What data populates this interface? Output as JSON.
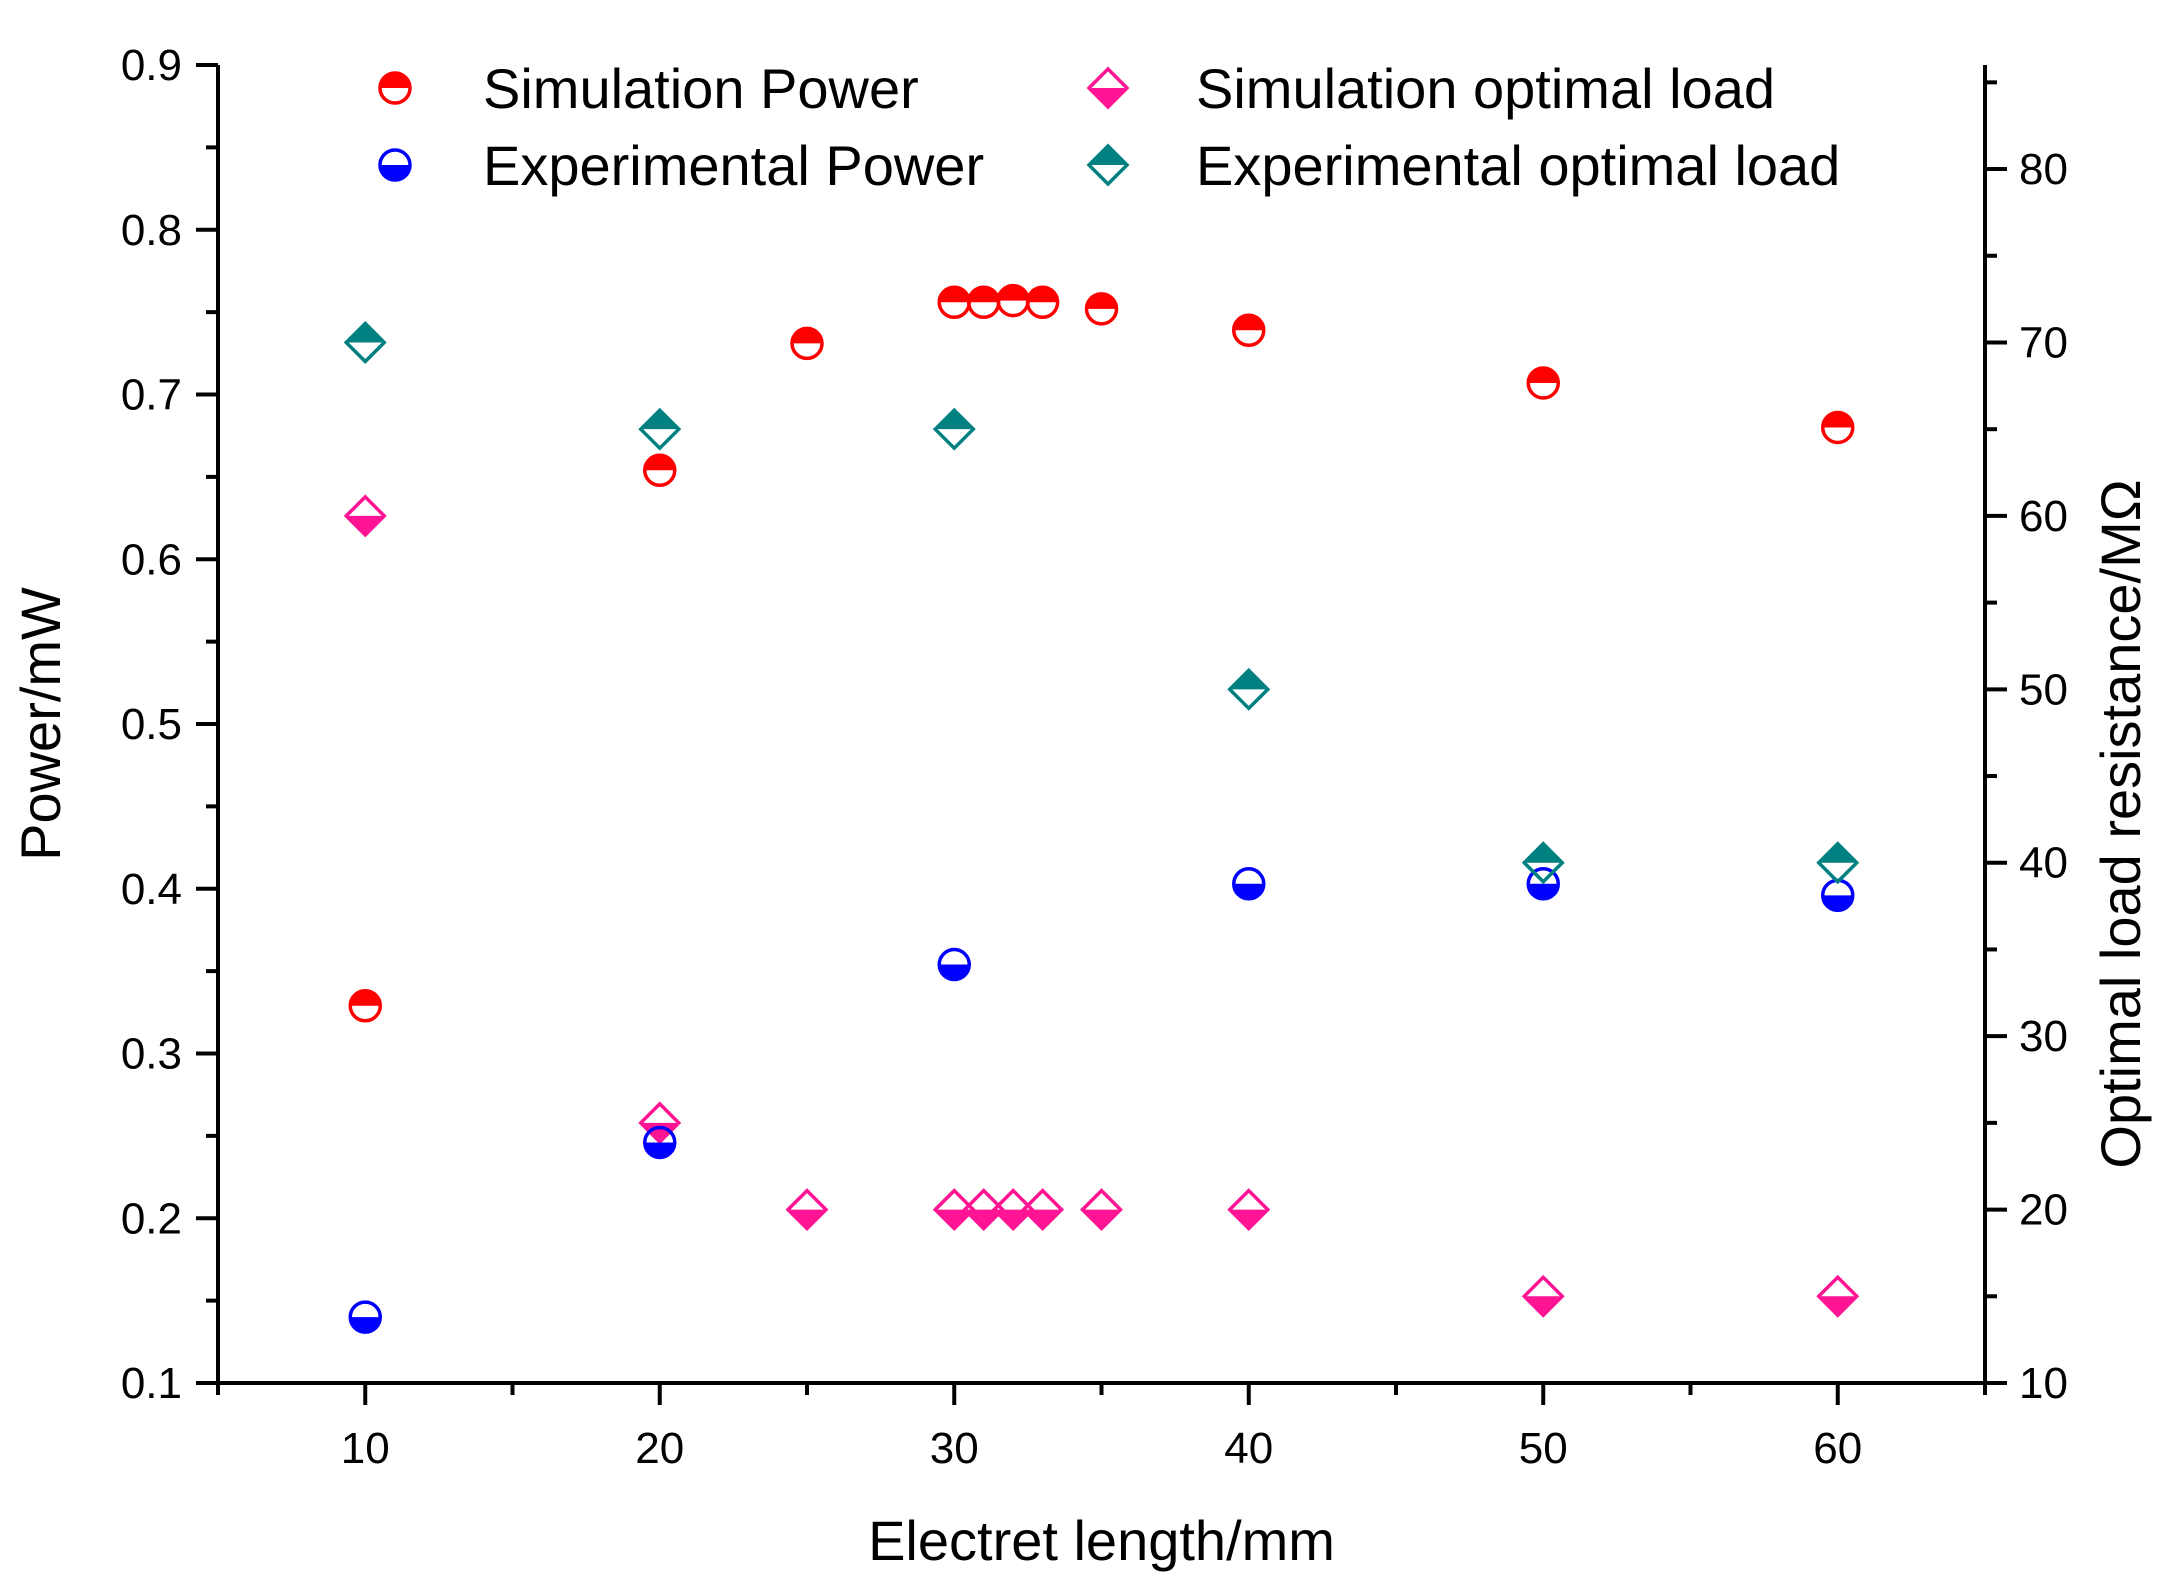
{
  "chart_data": {
    "type": "scatter",
    "xlabel": "Electret length/mm",
    "ylabel": "Power/mW",
    "y2label": "Optimal load resistance/MΩ",
    "xlim": [
      5,
      65
    ],
    "ylim": [
      0.1,
      0.9
    ],
    "y2lim": [
      10,
      86
    ],
    "x_ticks": [
      10,
      20,
      30,
      40,
      50,
      60
    ],
    "x_minor_ticks": [
      5,
      15,
      25,
      35,
      45,
      55,
      65
    ],
    "y_ticks": [
      0.1,
      0.2,
      0.3,
      0.4,
      0.5,
      0.6,
      0.7,
      0.8,
      0.9
    ],
    "y_tick_labels": [
      "0.1",
      "0.2",
      "0.3",
      "0.4",
      "0.5",
      "0.6",
      "0.7",
      "0.8",
      "0.9"
    ],
    "y_minor_ticks": [
      0.15,
      0.25,
      0.35,
      0.45,
      0.55,
      0.65,
      0.75,
      0.85
    ],
    "y2_ticks": [
      10,
      20,
      30,
      40,
      50,
      60,
      70,
      80
    ],
    "y2_minor_ticks": [
      15,
      25,
      35,
      45,
      55,
      65,
      75,
      85
    ],
    "grid": false,
    "legend_position": "top",
    "series": [
      {
        "name": "Simulation Power",
        "axis": "left",
        "marker": "half-circle-top",
        "color": "#ff0000",
        "x": [
          10,
          20,
          25,
          30,
          31,
          32,
          33,
          35,
          40,
          50,
          60
        ],
        "y": [
          0.329,
          0.654,
          0.731,
          0.756,
          0.756,
          0.757,
          0.756,
          0.752,
          0.739,
          0.707,
          0.68
        ]
      },
      {
        "name": "Simulation optimal load",
        "axis": "right",
        "marker": "half-diamond-bottom",
        "color": "#ff1493",
        "x": [
          10,
          20,
          25,
          30,
          31,
          32,
          33,
          35,
          40,
          50,
          60
        ],
        "y": [
          60,
          25,
          20,
          20,
          20,
          20,
          20,
          20,
          20,
          15,
          15
        ]
      },
      {
        "name": "Experimental Power",
        "axis": "left",
        "marker": "half-circle-bottom",
        "color": "#0000ff",
        "x": [
          10,
          20,
          30,
          40,
          50,
          60
        ],
        "y": [
          0.14,
          0.246,
          0.354,
          0.403,
          0.403,
          0.396
        ]
      },
      {
        "name": "Experimental optimal load",
        "axis": "right",
        "marker": "half-diamond-top",
        "color": "#008080",
        "x": [
          10,
          20,
          30,
          40,
          50,
          60
        ],
        "y": [
          70,
          65,
          65,
          50,
          40,
          40
        ]
      }
    ]
  }
}
